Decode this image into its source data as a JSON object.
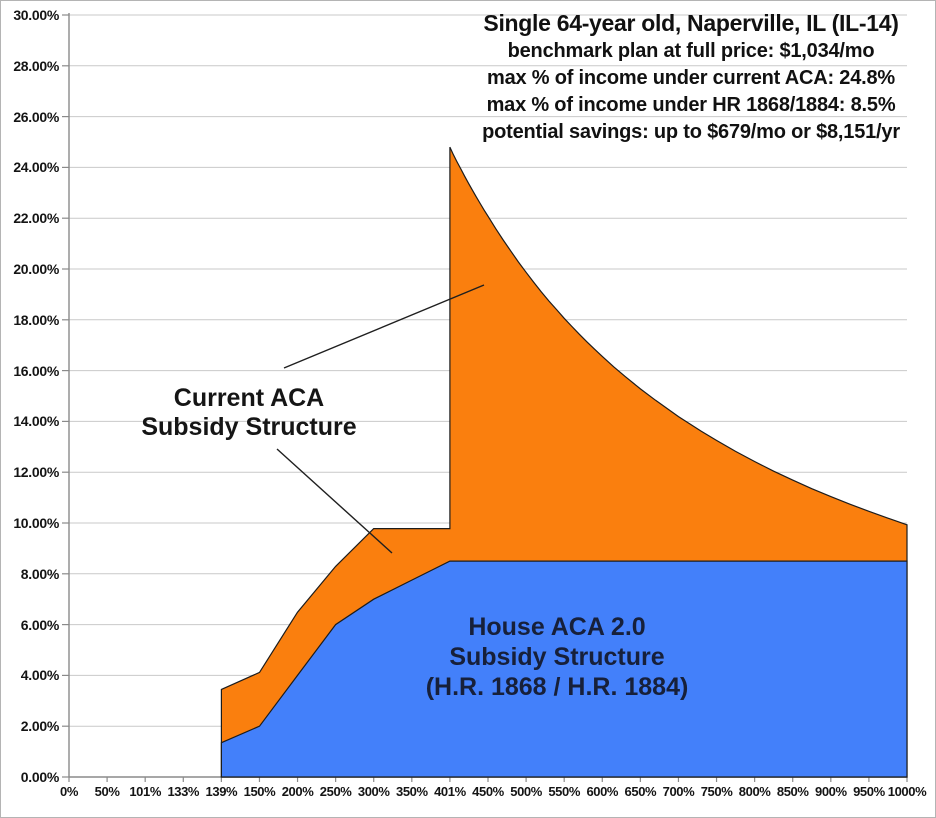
{
  "title": {
    "line1": "Single 64-year old, Naperville, IL (IL-14)",
    "line2": "benchmark plan at full price: $1,034/mo",
    "line3": "max % of income under current ACA: 24.8%",
    "line4": "max % of income under HR 1868/1884: 8.5%",
    "line5": "potential savings: up to $679/mo or $8,151/yr"
  },
  "annotations": {
    "current_aca": {
      "lines": [
        "Current ACA",
        "Subsidy Structure"
      ]
    },
    "house_aca2": {
      "lines": [
        "House ACA 2.0",
        "Subsidy Structure",
        "(H.R. 1868 / H.R. 1884)"
      ]
    }
  },
  "colors": {
    "current_aca_fill": "#fa7f0e",
    "house_aca2_fill": "#4380fa",
    "area_outline": "#1c1c1c",
    "gridline": "#c9c9c9",
    "axis": "#8a8a8a",
    "text": "#111111"
  },
  "chart_data": {
    "type": "area",
    "title": "Single 64-year old, Naperville, IL (IL-14)",
    "subtitle_lines": [
      "benchmark plan at full price: $1,034/mo",
      "max % of income under current ACA: 24.8%",
      "max % of income under HR 1868/1884: 8.5%",
      "potential savings: up to $679/mo or $8,151/yr"
    ],
    "grid": true,
    "legend": "none",
    "x_axis": {
      "categories": [
        "0%",
        "50%",
        "101%",
        "133%",
        "139%",
        "150%",
        "200%",
        "250%",
        "300%",
        "350%",
        "401%",
        "450%",
        "500%",
        "550%",
        "600%",
        "650%",
        "700%",
        "750%",
        "800%",
        "850%",
        "900%",
        "950%",
        "1000%"
      ],
      "values": [
        0,
        50,
        101,
        133,
        139,
        150,
        200,
        250,
        300,
        350,
        401,
        450,
        500,
        550,
        600,
        650,
        700,
        750,
        800,
        850,
        900,
        950,
        1000
      ]
    },
    "y_axis": {
      "min": 0,
      "max": 30,
      "step": 2,
      "tick_format": "0.00%"
    },
    "series": [
      {
        "name": "House ACA 2.0 Subsidy Structure (H.R. 1868 / H.R. 1884)",
        "color": "#4380fa",
        "points": [
          [
            139,
            1.35
          ],
          [
            150,
            2.0
          ],
          [
            200,
            4.0
          ],
          [
            250,
            6.0
          ],
          [
            300,
            7.0
          ],
          [
            350,
            7.75
          ],
          [
            401,
            8.5
          ],
          [
            1000,
            8.5
          ]
        ]
      },
      {
        "name": "Current ACA Subsidy Structure",
        "color": "#fa7f0e",
        "points_before_cliff": [
          [
            139,
            3.45
          ],
          [
            150,
            4.12
          ],
          [
            200,
            6.49
          ],
          [
            250,
            8.29
          ],
          [
            300,
            9.78
          ],
          [
            401,
            9.78
          ]
        ],
        "cliff_fpl": 401,
        "cliff_peak_pct": 24.8,
        "points_after_cliff": [
          [
            401,
            24.8
          ],
          [
            405,
            24.53
          ],
          [
            410,
            24.23
          ],
          [
            415,
            23.94
          ],
          [
            420,
            23.65
          ],
          [
            425,
            23.37
          ],
          [
            430,
            23.1
          ],
          [
            435,
            22.84
          ],
          [
            440,
            22.58
          ],
          [
            445,
            22.32
          ],
          [
            450,
            22.08
          ],
          [
            460,
            21.6
          ],
          [
            470,
            21.14
          ],
          [
            480,
            20.7
          ],
          [
            490,
            20.27
          ],
          [
            500,
            19.87
          ],
          [
            510,
            19.48
          ],
          [
            520,
            19.1
          ],
          [
            530,
            18.74
          ],
          [
            540,
            18.4
          ],
          [
            550,
            18.06
          ],
          [
            560,
            17.74
          ],
          [
            570,
            17.43
          ],
          [
            580,
            17.13
          ],
          [
            590,
            16.84
          ],
          [
            600,
            16.56
          ],
          [
            615,
            16.15
          ],
          [
            630,
            15.77
          ],
          [
            650,
            15.28
          ],
          [
            670,
            14.83
          ],
          [
            700,
            14.19
          ],
          [
            730,
            13.61
          ],
          [
            750,
            13.25
          ],
          [
            775,
            12.82
          ],
          [
            800,
            12.42
          ],
          [
            825,
            12.04
          ],
          [
            850,
            11.69
          ],
          [
            875,
            11.35
          ],
          [
            900,
            11.04
          ],
          [
            925,
            10.74
          ],
          [
            950,
            10.46
          ],
          [
            975,
            10.19
          ],
          [
            1000,
            9.93
          ]
        ]
      }
    ]
  }
}
